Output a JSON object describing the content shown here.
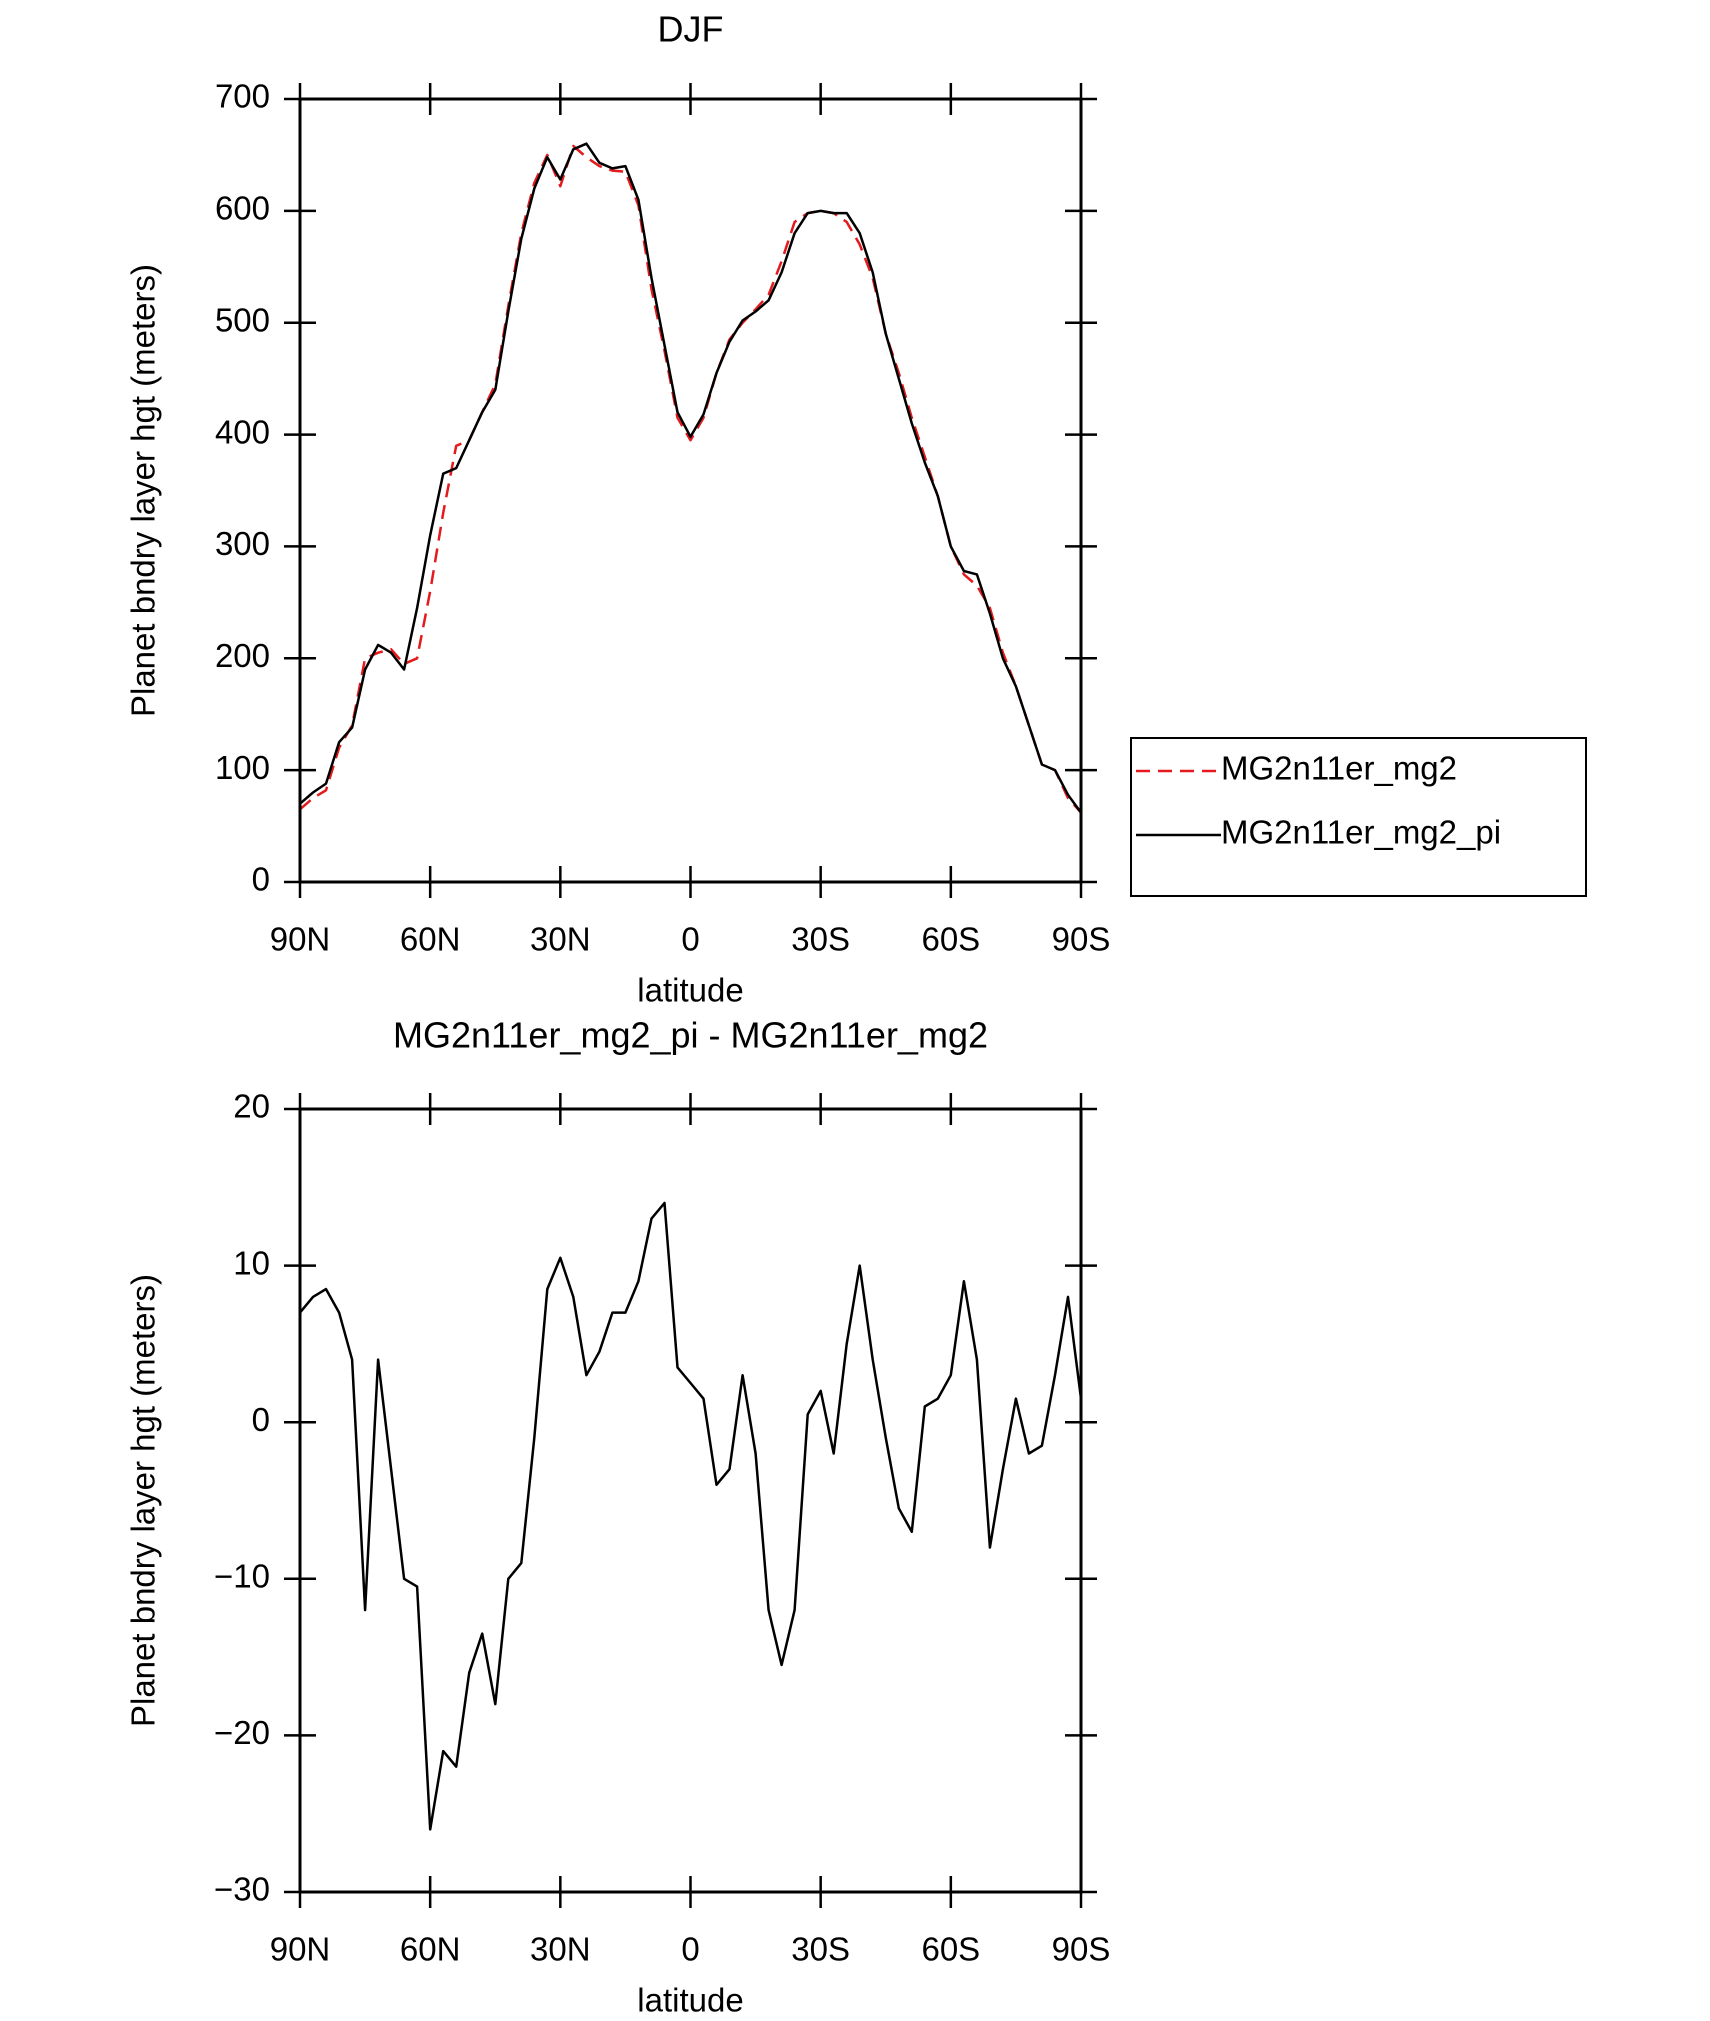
{
  "chart_data": [
    {
      "type": "line",
      "title": "DJF",
      "xlabel": "latitude",
      "ylabel": "Planet bndry layer hgt (meters)",
      "x": [
        90,
        87,
        84,
        81,
        78,
        75,
        72,
        69,
        66,
        63,
        60,
        57,
        54,
        51,
        48,
        45,
        42,
        39,
        36,
        33,
        30,
        27,
        24,
        21,
        18,
        15,
        12,
        9,
        6,
        3,
        0,
        -3,
        -6,
        -9,
        -12,
        -15,
        -18,
        -21,
        -24,
        -27,
        -30,
        -33,
        -36,
        -39,
        -42,
        -45,
        -48,
        -51,
        -54,
        -57,
        -60,
        -63,
        -66,
        -69,
        -72,
        -75,
        -78,
        -81,
        -84,
        -87,
        -90
      ],
      "xlim": [
        90,
        -90
      ],
      "xticks": [
        {
          "value": 90,
          "label": "90N"
        },
        {
          "value": 60,
          "label": "60N"
        },
        {
          "value": 30,
          "label": "30N"
        },
        0,
        {
          "value": -30,
          "label": "30S"
        },
        {
          "value": -60,
          "label": "60S"
        },
        {
          "value": -90,
          "label": "90S"
        }
      ],
      "ylim": [
        0,
        700
      ],
      "yticks": [
        0,
        100,
        200,
        300,
        400,
        500,
        600,
        700
      ],
      "legend": "right",
      "series": [
        {
          "name": "MG2n11er_mg2",
          "color": "#e41a1c",
          "linestyle": "dashed",
          "values": [
            65,
            75,
            82,
            120,
            140,
            200,
            205,
            208,
            195,
            200,
            260,
            330,
            390,
            395,
            420,
            445,
            515,
            580,
            625,
            650,
            622,
            658,
            648,
            640,
            636,
            635,
            605,
            530,
            475,
            415,
            395,
            415,
            455,
            485,
            500,
            512,
            525,
            555,
            590,
            598,
            600,
            598,
            590,
            570,
            540,
            490,
            455,
            415,
            380,
            345,
            300,
            275,
            265,
            245,
            205,
            175,
            140,
            105,
            100,
            75,
            62
          ]
        },
        {
          "name": "MG2n11er_mg2_pi",
          "color": "#000000",
          "linestyle": "solid",
          "values": [
            70,
            80,
            88,
            125,
            138,
            190,
            212,
            205,
            190,
            245,
            310,
            365,
            370,
            395,
            420,
            440,
            510,
            575,
            620,
            648,
            628,
            655,
            660,
            643,
            638,
            640,
            610,
            540,
            480,
            420,
            398,
            418,
            455,
            483,
            502,
            510,
            520,
            545,
            580,
            598,
            600,
            598,
            598,
            580,
            545,
            490,
            450,
            410,
            375,
            345,
            300,
            278,
            275,
            240,
            200,
            175,
            140,
            105,
            100,
            78,
            62
          ]
        }
      ]
    },
    {
      "type": "line",
      "title": "MG2n11er_mg2_pi - MG2n11er_mg2",
      "xlabel": "latitude",
      "ylabel": "Planet bndry layer hgt (meters)",
      "x": [
        90,
        87,
        84,
        81,
        78,
        75,
        72,
        69,
        66,
        63,
        60,
        57,
        54,
        51,
        48,
        45,
        42,
        39,
        36,
        33,
        30,
        27,
        24,
        21,
        18,
        15,
        12,
        9,
        6,
        3,
        0,
        -3,
        -6,
        -9,
        -12,
        -15,
        -18,
        -21,
        -24,
        -27,
        -30,
        -33,
        -36,
        -39,
        -42,
        -45,
        -48,
        -51,
        -54,
        -57,
        -60,
        -63,
        -66,
        -69,
        -72,
        -75,
        -78,
        -81,
        -84,
        -87,
        -90
      ],
      "xlim": [
        90,
        -90
      ],
      "xticks": [
        {
          "value": 90,
          "label": "90N"
        },
        {
          "value": 60,
          "label": "60N"
        },
        {
          "value": 30,
          "label": "30N"
        },
        0,
        {
          "value": -30,
          "label": "30S"
        },
        {
          "value": -60,
          "label": "60S"
        },
        {
          "value": -90,
          "label": "90S"
        }
      ],
      "ylim": [
        -30,
        20
      ],
      "yticks": [
        {
          "value": -30,
          "label": "−30"
        },
        {
          "value": -20,
          "label": "−20"
        },
        {
          "value": -10,
          "label": "−10"
        },
        0,
        10,
        20
      ],
      "color": "#000000",
      "values": [
        7,
        8,
        8.5,
        7,
        4,
        -12,
        4,
        -3,
        -10,
        -10.5,
        -26,
        -21,
        -22,
        -16,
        -13.5,
        -18,
        -10,
        -9,
        -1,
        8.5,
        10.5,
        8,
        3,
        4.5,
        7,
        7,
        9,
        13,
        14,
        3.5,
        2.5,
        1.5,
        -4,
        -3,
        3,
        -2,
        -12,
        -15.5,
        -12,
        0.5,
        2,
        -2,
        5,
        10,
        4,
        -1,
        -5.5,
        -7,
        1,
        1.5,
        3,
        9,
        4,
        -8,
        -3,
        1.5,
        -2,
        -1.5,
        3,
        8,
        1.5
      ]
    }
  ]
}
